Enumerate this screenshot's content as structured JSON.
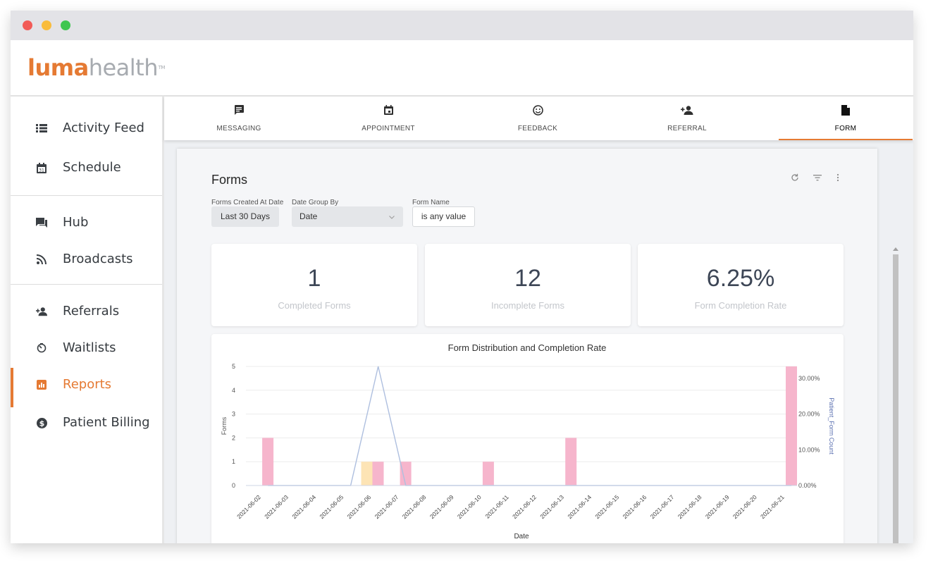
{
  "brand": {
    "logo_bold": "luma",
    "logo_light": "health",
    "trademark": "TM",
    "accent": "#e57a33"
  },
  "sidebar": {
    "items": [
      {
        "label": "Activity Feed",
        "icon": "list-icon"
      },
      {
        "label": "Schedule",
        "icon": "calendar-icon"
      },
      {
        "label": "Hub",
        "icon": "chat-icon"
      },
      {
        "label": "Broadcasts",
        "icon": "rss-icon"
      },
      {
        "label": "Referrals",
        "icon": "person-add-icon"
      },
      {
        "label": "Waitlists",
        "icon": "timer-icon"
      },
      {
        "label": "Reports",
        "icon": "bar-chart-icon",
        "active": true
      },
      {
        "label": "Patient Billing",
        "icon": "dollar-icon"
      }
    ]
  },
  "tabs": [
    {
      "label": "MESSAGING",
      "icon": "message-icon"
    },
    {
      "label": "APPOINTMENT",
      "icon": "calendar-icon"
    },
    {
      "label": "FEEDBACK",
      "icon": "smiley-icon"
    },
    {
      "label": "REFERRAL",
      "icon": "person-add-icon"
    },
    {
      "label": "FORM",
      "icon": "document-icon",
      "active": true
    }
  ],
  "report": {
    "title": "Forms",
    "filters": {
      "created_label": "Forms Created At Date",
      "created_value": "Last 30 Days",
      "group_label": "Date Group By",
      "group_value": "Date",
      "name_label": "Form Name",
      "name_value": "is any value"
    },
    "kpis": [
      {
        "value": "1",
        "label": "Completed Forms"
      },
      {
        "value": "12",
        "label": "Incomplete Forms"
      },
      {
        "value": "6.25%",
        "label": "Form Completion Rate"
      }
    ]
  },
  "chart_data": {
    "type": "bar",
    "title": "Form Distribution and Completion Rate",
    "xlabel": "Date",
    "ylabel": "Forms",
    "y2label": "Patient_Form Count",
    "ylim": [
      0,
      5
    ],
    "y2lim": [
      0,
      0.3333
    ],
    "yticks": [
      "0",
      "1",
      "2",
      "3",
      "4",
      "5"
    ],
    "y2ticks": [
      "0.00%",
      "10.00%",
      "20.00%",
      "30.00%"
    ],
    "categories": [
      "2021-06-02",
      "2021-06-03",
      "2021-06-04",
      "2021-06-05",
      "2021-06-06",
      "2021-06-07",
      "2021-06-08",
      "2021-06-09",
      "2021-06-10",
      "2021-06-11",
      "2021-06-12",
      "2021-06-13",
      "2021-06-14",
      "2021-06-15",
      "2021-06-16",
      "2021-06-17",
      "2021-06-18",
      "2021-06-19",
      "2021-06-20",
      "2021-06-21"
    ],
    "series": [
      {
        "kind": "bar",
        "color": "#fde4b5",
        "values": [
          0,
          0,
          0,
          0,
          1,
          0,
          0,
          0,
          0,
          0,
          0,
          0,
          0,
          0,
          0,
          0,
          0,
          0,
          0,
          0
        ]
      },
      {
        "kind": "bar",
        "color": "#f6b5cc",
        "values": [
          2,
          0,
          0,
          0,
          1,
          1,
          0,
          0,
          1,
          0,
          0,
          2,
          0,
          0,
          0,
          0,
          0,
          0,
          0,
          5
        ]
      },
      {
        "kind": "line",
        "color": "#aebfdf",
        "values": [
          0,
          0,
          0,
          0,
          0.3333,
          0,
          0,
          0,
          0,
          0,
          0,
          0,
          0,
          0,
          0,
          0,
          0,
          0,
          0,
          0
        ]
      }
    ],
    "grid": true
  }
}
